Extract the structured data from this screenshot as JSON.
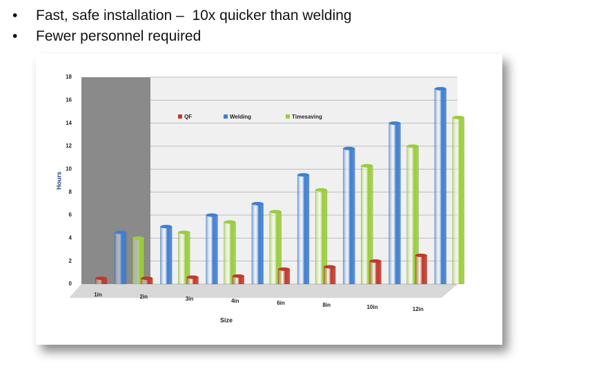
{
  "bullets": [
    "Fast, safe installation –  10x quicker than welding",
    "Fewer personnel required"
  ],
  "chart_data": {
    "type": "bar",
    "x_label": "Size",
    "y_label": "Hours",
    "categories": [
      "1in",
      "2in",
      "3in",
      "4in",
      "6in",
      "8in",
      "10in",
      "12in"
    ],
    "series": [
      {
        "name": "QF",
        "color": "#c0392b",
        "values": [
          0.5,
          0.5,
          0.6,
          0.7,
          1.3,
          1.5,
          2,
          2.5
        ]
      },
      {
        "name": "Welding",
        "color": "#3f7fd0",
        "values": [
          4.5,
          5,
          6,
          7,
          9.5,
          11.8,
          14,
          17
        ]
      },
      {
        "name": "Timesaving",
        "color": "#9acd3c",
        "values": [
          4,
          4.5,
          5.4,
          6.3,
          8.2,
          10.3,
          12,
          14.5
        ]
      }
    ],
    "ylim": [
      0,
      18
    ],
    "yticks": [
      0,
      2,
      4,
      6,
      8,
      10,
      12,
      14,
      16,
      18
    ],
    "grid": true
  }
}
